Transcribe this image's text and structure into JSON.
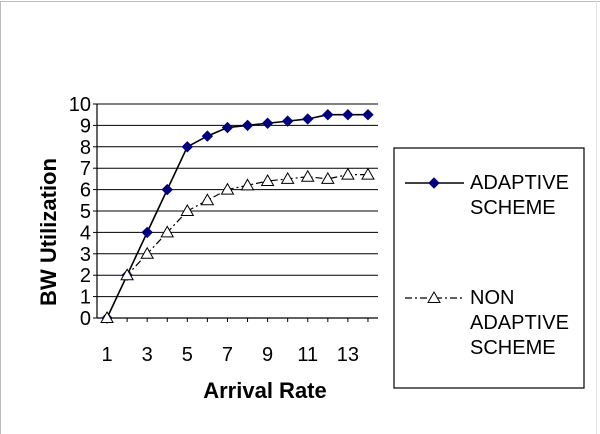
{
  "chart_data": {
    "type": "line",
    "title": "",
    "xlabel": "Arrival Rate",
    "ylabel": "BW Utilization",
    "x": [
      1,
      2,
      3,
      4,
      5,
      6,
      7,
      8,
      9,
      10,
      11,
      12,
      13,
      14
    ],
    "x_tick_labels": [
      "1",
      "3",
      "5",
      "7",
      "9",
      "11",
      "13"
    ],
    "x_tick_values": [
      1,
      3,
      5,
      7,
      9,
      11,
      13
    ],
    "xlim": [
      0.5,
      14.5
    ],
    "ylim": [
      0,
      10
    ],
    "y_ticks": [
      0,
      1,
      2,
      3,
      4,
      5,
      6,
      7,
      8,
      9,
      10
    ],
    "grid": "horizontal",
    "legend_position": "right",
    "series": [
      {
        "name_lines": [
          "ADAPTIVE",
          "SCHEME"
        ],
        "marker": "diamond",
        "line_style": "solid",
        "color": "#000080",
        "values": [
          0,
          2,
          4,
          6,
          8,
          8.5,
          8.9,
          9.0,
          9.1,
          9.2,
          9.3,
          9.5,
          9.5,
          9.5
        ]
      },
      {
        "name_lines": [
          "NON",
          "ADAPTIVE",
          "SCHEME"
        ],
        "marker": "triangle",
        "line_style": "dash-dot",
        "color": "#000000",
        "values": [
          0,
          2,
          3,
          4,
          5,
          5.5,
          6.0,
          6.2,
          6.4,
          6.5,
          6.6,
          6.5,
          6.7,
          6.7
        ]
      }
    ]
  }
}
